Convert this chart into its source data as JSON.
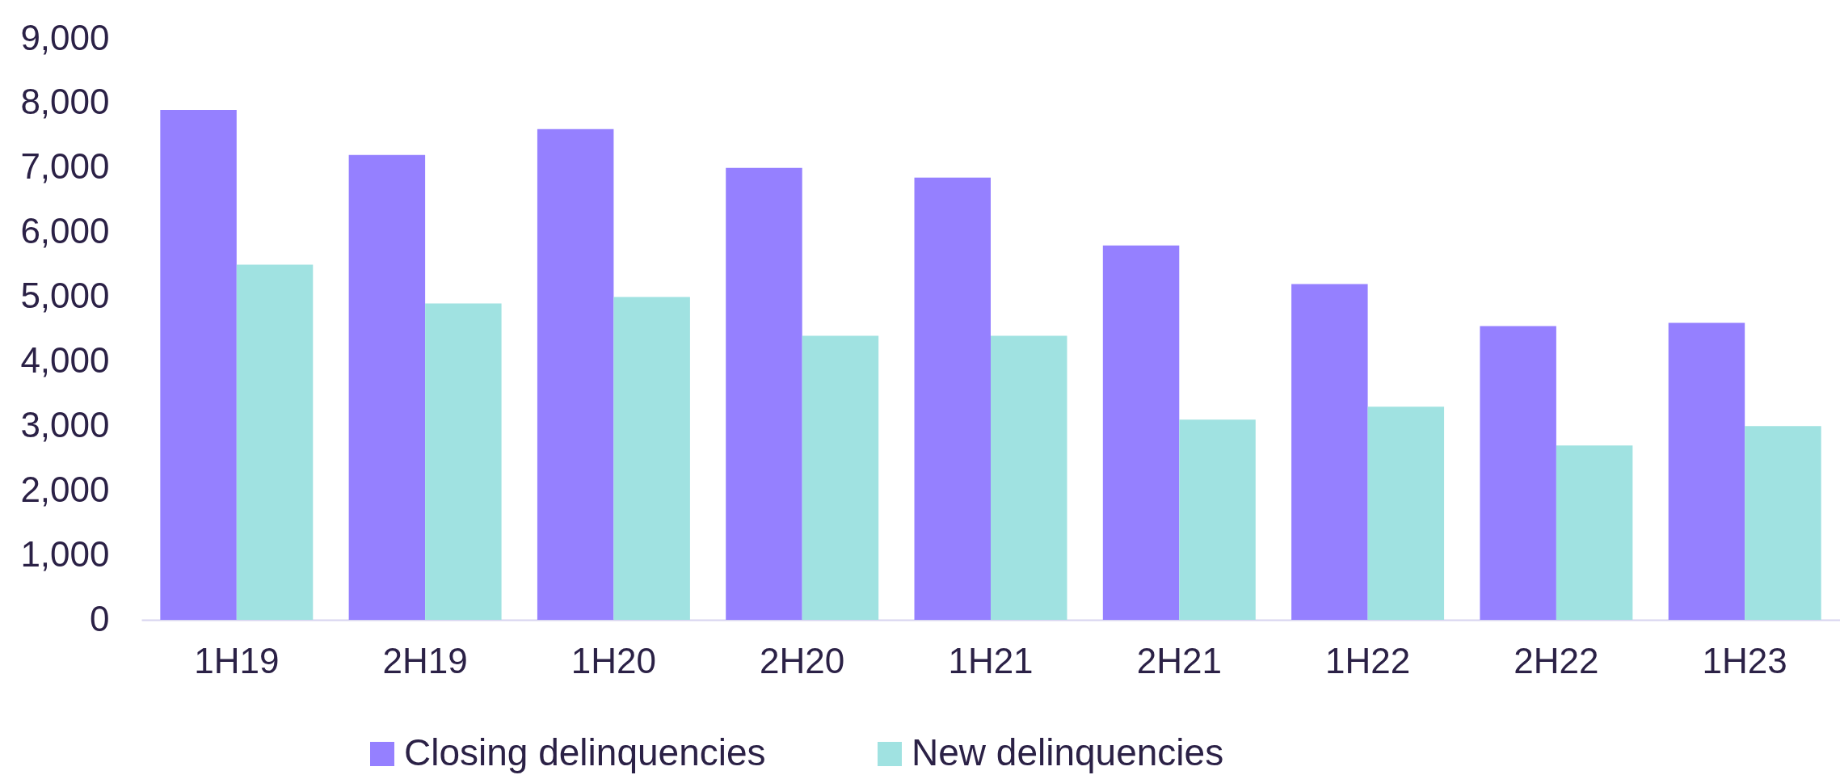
{
  "chart_data": {
    "type": "bar",
    "categories": [
      "1H19",
      "2H19",
      "1H20",
      "2H20",
      "1H21",
      "2H21",
      "1H22",
      "2H22",
      "1H23"
    ],
    "series": [
      {
        "name": "Closing delinquencies",
        "color": "#9580ff",
        "values": [
          7900,
          7200,
          7600,
          7000,
          6850,
          5800,
          5200,
          4550,
          4600
        ]
      },
      {
        "name": "New delinquencies",
        "color": "#a0e2e1",
        "values": [
          5500,
          4900,
          5000,
          4400,
          4400,
          3100,
          3300,
          2700,
          3000
        ]
      }
    ],
    "ylim": [
      0,
      9000
    ],
    "yticks": [
      0,
      {
        "value": 1000,
        "label": "1,000"
      },
      {
        "value": 2000,
        "label": "2,000"
      },
      {
        "value": 3000,
        "label": "3,000"
      },
      {
        "value": 4000,
        "label": "4,000"
      },
      {
        "value": 5000,
        "label": "5,000"
      },
      {
        "value": 6000,
        "label": "6,000"
      },
      {
        "value": 7000,
        "label": "7,000"
      },
      {
        "value": 8000,
        "label": "8,000"
      },
      {
        "value": 9000,
        "label": "9,000"
      }
    ],
    "grid": false,
    "legend": "bottom"
  }
}
